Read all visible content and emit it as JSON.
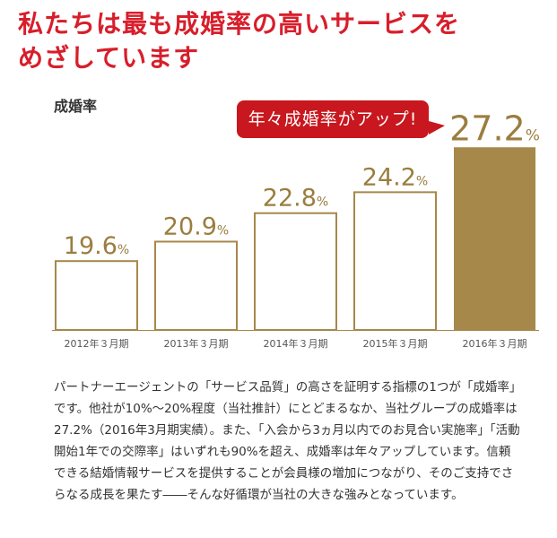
{
  "headline": {
    "line1": "私たちは最も成婚率の高いサービスを",
    "line2": "めざしています"
  },
  "chart_title": "成婚率",
  "callout": "年々成婚率がアップ!",
  "colors": {
    "headline": "#d81e2b",
    "callout": "#c8171e",
    "bar_outline": "#a6884a",
    "bar_fill_highlight": "#a6884a",
    "value_text": "#9b7d3f",
    "tick_text": "#555555"
  },
  "chart_data": {
    "type": "bar",
    "title": "成婚率",
    "categories": [
      "2012年３月期",
      "2013年３月期",
      "2014年３月期",
      "2015年３月期",
      "2016年３月期"
    ],
    "values": [
      19.6,
      20.9,
      22.8,
      24.2,
      27.2
    ],
    "value_labels": [
      "19.6",
      "20.9",
      "22.8",
      "24.2",
      "27.2"
    ],
    "unit": "%",
    "highlight_index": 4,
    "ylim": [
      15,
      28
    ],
    "grid": false,
    "xlabel": "",
    "ylabel": ""
  },
  "body_text": "パートナーエージェントの「サービス品質」の高さを証明する指標の1つが「成婚率」です。他社が10%～20%程度（当社推計）にとどまるなか、当社グループの成婚率は27.2%（2016年3月期実績）。また、「入会から3ヵ月以内でのお見合い実施率」「活動開始1年での交際率」はいずれも90%を超え、成婚率は年々アップしています。信頼できる結婚情報サービスを提供することが会員様の増加につながり、そのご支持でさらなる成長を果たす――そんな好循環が当社の大きな強みとなっています。"
}
